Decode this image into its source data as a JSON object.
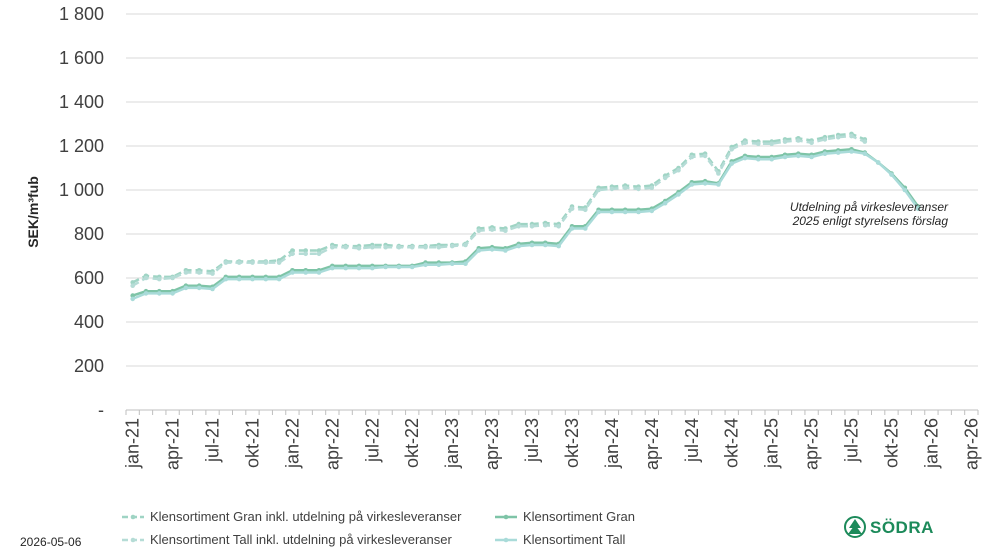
{
  "chart_data": {
    "type": "line",
    "title": "",
    "ylabel": "SEK/m³fub",
    "ylim": [
      0,
      1800
    ],
    "yticks": [
      0,
      200,
      400,
      600,
      800,
      1000,
      1200,
      1400,
      1600,
      1800
    ],
    "ytick_labels": [
      "-",
      "200",
      "400",
      "600",
      "800",
      "1 000",
      "1 200",
      "1 400",
      "1 600",
      "1 800"
    ],
    "xtick_labels": [
      "jan-21",
      "apr-21",
      "jul-21",
      "okt-21",
      "jan-22",
      "apr-22",
      "jul-22",
      "okt-22",
      "jan-23",
      "apr-23",
      "jul-23",
      "okt-23",
      "jan-24",
      "apr-24",
      "jul-24",
      "okt-24",
      "jan-25",
      "apr-25",
      "jul-25",
      "okt-25",
      "jan-26",
      "apr-26"
    ],
    "grid": true,
    "legend_placement": "bottom",
    "annotation": [
      "Utdelning på virkesleveranser",
      "2025 enligt styrelsens förslag"
    ],
    "series": [
      {
        "name": "Klensortiment Gran inkl. utdelning på virkesleveranser",
        "color": "#9fd4c4",
        "dashed": true,
        "values": [
          580,
          610,
          605,
          605,
          635,
          635,
          630,
          675,
          675,
          675,
          675,
          680,
          725,
          725,
          725,
          750,
          745,
          745,
          750,
          750,
          745,
          745,
          745,
          750,
          750,
          755,
          825,
          830,
          825,
          845,
          845,
          850,
          845,
          925,
          920,
          1010,
          1015,
          1020,
          1015,
          1020,
          1065,
          1100,
          1160,
          1165,
          1085,
          1195,
          1225,
          1220,
          1220,
          1230,
          1235,
          1225,
          1240,
          1250,
          1255,
          1230
        ]
      },
      {
        "name": "Klensortiment Gran",
        "color": "#7ec4a7",
        "dashed": false,
        "values": [
          520,
          540,
          540,
          540,
          565,
          565,
          560,
          605,
          605,
          605,
          605,
          605,
          635,
          635,
          635,
          655,
          655,
          655,
          655,
          655,
          655,
          655,
          670,
          670,
          670,
          675,
          735,
          740,
          735,
          755,
          760,
          760,
          755,
          835,
          835,
          910,
          910,
          910,
          910,
          915,
          950,
          990,
          1035,
          1040,
          1030,
          1130,
          1155,
          1150,
          1150,
          1160,
          1165,
          1160,
          1175,
          1180,
          1185,
          1170,
          1125,
          1075,
          1010,
          925
        ]
      },
      {
        "name": "Klensortiment Tall inkl. utdelning på virkesleveranser",
        "color": "#b5dcd6",
        "dashed": true,
        "values": [
          565,
          600,
          595,
          600,
          625,
          625,
          620,
          670,
          670,
          670,
          670,
          670,
          710,
          710,
          710,
          740,
          740,
          735,
          740,
          740,
          740,
          740,
          740,
          740,
          745,
          750,
          815,
          820,
          815,
          835,
          835,
          840,
          835,
          915,
          910,
          1000,
          1005,
          1010,
          1005,
          1010,
          1055,
          1090,
          1150,
          1155,
          1075,
          1185,
          1215,
          1210,
          1210,
          1220,
          1225,
          1215,
          1230,
          1240,
          1245,
          1220
        ]
      },
      {
        "name": "Klensortiment Tall",
        "color": "#a9dbd9",
        "dashed": false,
        "values": [
          505,
          530,
          530,
          530,
          555,
          555,
          550,
          595,
          595,
          595,
          595,
          595,
          625,
          625,
          625,
          645,
          645,
          645,
          645,
          650,
          650,
          650,
          660,
          660,
          665,
          665,
          725,
          730,
          725,
          745,
          750,
          750,
          745,
          825,
          825,
          900,
          900,
          900,
          900,
          905,
          940,
          980,
          1025,
          1030,
          1025,
          1120,
          1145,
          1140,
          1140,
          1150,
          1155,
          1150,
          1165,
          1170,
          1175,
          1165,
          1125,
          1070,
          1000,
          915
        ]
      }
    ]
  },
  "footer": {
    "date": "2026-05-06",
    "logo_text": "SÖDRA"
  }
}
